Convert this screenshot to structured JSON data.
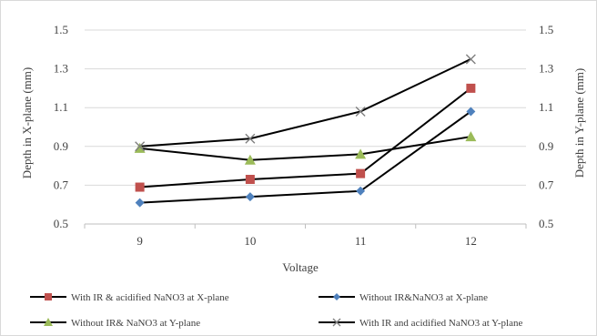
{
  "chart_data": {
    "type": "line",
    "categories": [
      "9",
      "10",
      "11",
      "12"
    ],
    "xlabel": "Voltage",
    "ylabel_left": "Depth in X-plane (mm)",
    "ylabel_right": "Depth in Y-plane (mm)",
    "ylim_left": [
      0.5,
      1.5
    ],
    "ylim_right": [
      0.5,
      1.5
    ],
    "yticks_left": [
      "0.5",
      "0.7",
      "0.9",
      "1.1",
      "1.3",
      "1.5"
    ],
    "yticks_right": [
      "0.5",
      "0.7",
      "0.9",
      "1.1",
      "1.3",
      "1.5"
    ],
    "grid": "horizontal",
    "legend_position": "bottom",
    "series": [
      {
        "name": "With IR & acidified NaNO3 at X-plane",
        "values": [
          0.69,
          0.73,
          0.76,
          1.2
        ],
        "marker": "square",
        "marker_color": "#c0504d",
        "axis": "left"
      },
      {
        "name": "Without IR&NaNO3 at X-plane",
        "values": [
          0.61,
          0.64,
          0.67,
          1.08
        ],
        "marker": "diamond",
        "marker_color": "#4f81bd",
        "axis": "left"
      },
      {
        "name": "Without IR& NaNO3 at Y-plane",
        "values": [
          0.89,
          0.83,
          0.86,
          0.95
        ],
        "marker": "triangle",
        "marker_color": "#9bbb59",
        "axis": "right"
      },
      {
        "name": "With IR and acidified NaNO3 at Y-plane",
        "values": [
          0.9,
          0.94,
          1.08,
          1.35
        ],
        "marker": "x",
        "marker_color": "#7f7f7f",
        "axis": "right"
      }
    ]
  }
}
